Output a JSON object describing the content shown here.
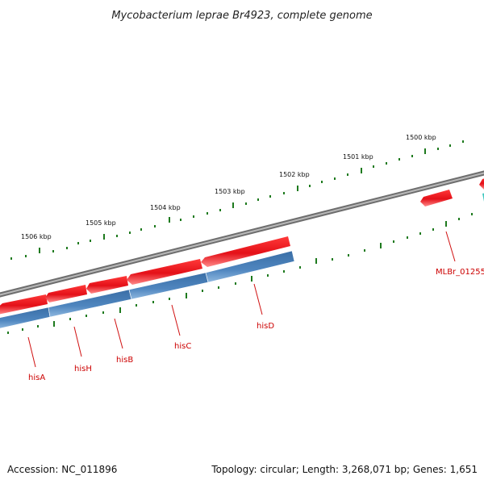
{
  "header": {
    "title": "Mycobacterium leprae Br4923, complete genome"
  },
  "scale_labels": [
    "1500 kbp",
    "1501 kbp",
    "1502 kbp",
    "1503 kbp",
    "1504 kbp",
    "1505 kbp",
    "1506 kbp"
  ],
  "gene_labels": [
    "hisA",
    "hisH",
    "hisB",
    "hisC",
    "hisD",
    "MLBr_01255"
  ],
  "footer": {
    "accession": "Accession: NC_011896",
    "summary": "Topology: circular; Length: 3,268,071 bp; Genes: 1,651"
  },
  "colors": {
    "backbone": "#8a8a8a",
    "cds": "#e8161c",
    "gene": "#4a80b8",
    "tick": "#1e7a1e",
    "label": "#cc0000",
    "accent": "#40c8c0"
  }
}
